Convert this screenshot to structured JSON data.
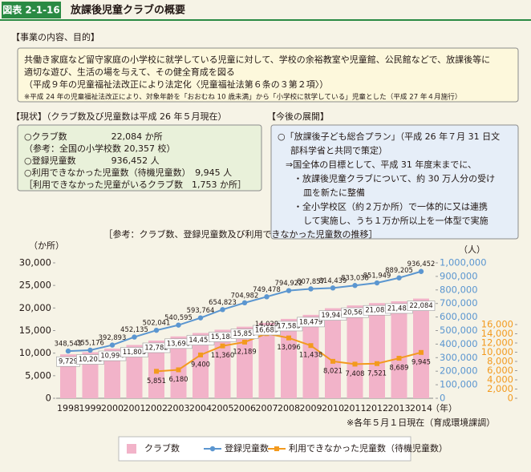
{
  "header": {
    "figure_no": "図表 2-1-16",
    "title": "放課後児童クラブの概要"
  },
  "purpose": {
    "heading": "【事業の内容、目的】",
    "lines": [
      "共働き家庭など留守家庭の小学校に就学している児童に対して、学校の余裕教室や児童館、公民館などで、放課後等に",
      "適切な遊び、生活の場を与えて、その健全育成を図る",
      "（平成９年の児童福祉法改正により法定化〈児童福祉法第６条の３第２項〉）"
    ],
    "note": "※平成 24 年の児童福祉法改正により、対象年齢を「おおむね 10 歳未満」から「小学校に就学している」児童とした（平成 27 年４月施行）"
  },
  "current": {
    "heading": "【現状】（クラブ数及び児童数は平成 26 年５月現在）",
    "lines": [
      "○クラブ数　　　　　22,084 か所",
      "（参考：全国の小学校数 20,357 校）",
      "○登録児童数　　　　936,452 人",
      "○利用できなかった児童数（待機児童数）　9,945 人",
      "［利用できなかった児童がいるクラブ数　1,753 か所］"
    ]
  },
  "future": {
    "heading": "【今後の展開】",
    "lines": [
      "○「放課後子ども総合プラン」（平成 26 年７月 31 日文",
      "部科学省と共同で策定）",
      "⇒国全体の目標として、平成 31 年度末までに、",
      "・放課後児童クラブについて、約 30 万人分の受け",
      "皿を新たに整備",
      "・全小学校区（約２万か所）で一体的に又は連携",
      "して実施し、うち１万か所以上を一体型で実施"
    ]
  },
  "chart_data": {
    "type": "bar_line",
    "title": "［参考：クラブ数、登録児童数及び利用できなかった児童数の推移］",
    "y_label": "（か所）",
    "y2_label": "（人）",
    "x_label": "（年）",
    "note": "※各年５月１日現在（育成環境課調）",
    "categories": [
      "1998",
      "1999",
      "2000",
      "2001",
      "2002",
      "2003",
      "2004",
      "2005",
      "2006",
      "2007",
      "2008",
      "2009",
      "2010",
      "2011",
      "2012",
      "2013",
      "2014"
    ],
    "ylim": [
      0,
      30000
    ],
    "yticks": [
      0,
      {
        "value": 5000,
        "label": "5,000"
      },
      {
        "value": 10000,
        "label": "10,000"
      },
      {
        "value": 15000,
        "label": "15,000"
      },
      {
        "value": 20000,
        "label": "20,000"
      },
      {
        "value": 25000,
        "label": "25,000"
      },
      {
        "value": 30000,
        "label": "30,000"
      }
    ],
    "y2lim": [
      0,
      1000000
    ],
    "y2ticks": [
      0,
      {
        "value": 100000,
        "label": "100,000"
      },
      {
        "value": 200000,
        "label": "200,000"
      },
      {
        "value": 300000,
        "label": "300,000"
      },
      {
        "value": 400000,
        "label": "400,000"
      },
      {
        "value": 500000,
        "label": "500,000"
      },
      {
        "value": 600000,
        "label": "600,000"
      },
      {
        "value": 700000,
        "label": "700,000"
      },
      {
        "value": 800000,
        "label": "800,000"
      },
      {
        "value": 900000,
        "label": "900,000"
      },
      {
        "value": 1000000,
        "label": "1,000,000"
      }
    ],
    "y3lim": [
      0,
      16000
    ],
    "y3ticks": [
      0,
      {
        "value": 2000,
        "label": "2,000"
      },
      {
        "value": 4000,
        "label": "4,000"
      },
      {
        "value": 6000,
        "label": "6,000"
      },
      {
        "value": 8000,
        "label": "8,000"
      },
      {
        "value": 10000,
        "label": "10,000"
      },
      {
        "value": 12000,
        "label": "12,000"
      },
      {
        "value": 14000,
        "label": "14,000"
      },
      {
        "value": 16000,
        "label": "16,000"
      }
    ],
    "series": [
      {
        "name": "クラブ数",
        "type": "bar",
        "color": "#f2b3c9",
        "values": [
          9729,
          10201,
          10994,
          11803,
          12782,
          13698,
          14457,
          15184,
          15857,
          16685,
          17583,
          18479,
          19946,
          20561,
          21085,
          21482,
          22084
        ],
        "value_labels": [
          "9,729",
          "10,201",
          "10,994",
          "11,803",
          "12,782",
          "13,698",
          "14,457",
          "15,184",
          "15,857",
          "16,685",
          "17,583",
          "18,479",
          "19,946",
          "20,561",
          "21,085",
          "21,482",
          "22,084"
        ]
      },
      {
        "name": "登録児童数",
        "type": "line",
        "axis": "y2",
        "color": "#5b96d0",
        "values": [
          348543,
          355176,
          392893,
          452135,
          502041,
          540595,
          593764,
          654823,
          704982,
          749478,
          794922,
          807857,
          814439,
          833038,
          851949,
          889205,
          936452
        ],
        "value_labels": [
          "348,543",
          "355,176",
          "392,893",
          "452,135",
          "502,041",
          "540,595",
          "593,764",
          "654,823",
          "704,982",
          "749,478",
          "794,922",
          "807,857",
          "814,439",
          "833,038",
          "851,949",
          "889,205",
          "936,452"
        ]
      },
      {
        "name": "利用できなかった児童数（待機児童数）",
        "type": "line",
        "axis": "y3",
        "color": "#f39a1e",
        "values": [
          null,
          null,
          null,
          null,
          5851,
          6180,
          9400,
          11360,
          12189,
          14029,
          13096,
          11438,
          8021,
          7408,
          7521,
          8689,
          9945
        ],
        "value_labels": [
          null,
          null,
          null,
          null,
          "5,851",
          "6,180",
          "9,400",
          "11,360",
          "12,189",
          "14,029",
          "13,096",
          "11,438",
          "8,021",
          "7,408",
          "7,521",
          "8,689",
          "9,945"
        ]
      }
    ],
    "grid": false
  }
}
